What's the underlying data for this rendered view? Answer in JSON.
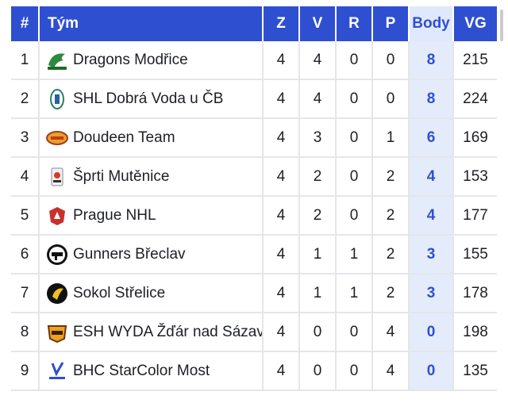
{
  "header": {
    "rank": "#",
    "team": "Tým",
    "z": "Z",
    "v": "V",
    "r": "R",
    "p": "P",
    "body": "Body",
    "vg": "VG"
  },
  "rows": [
    {
      "rank": "1",
      "team": "Dragons Modřice",
      "z": "4",
      "v": "4",
      "r": "0",
      "p": "0",
      "body": "8",
      "vg": "215",
      "logo": "dragon-logo-icon"
    },
    {
      "rank": "2",
      "team": "SHL Dobrá Voda u ČB",
      "z": "4",
      "v": "4",
      "r": "0",
      "p": "0",
      "body": "8",
      "vg": "224",
      "logo": "shl-logo-icon"
    },
    {
      "rank": "3",
      "team": "Doudeen Team",
      "z": "4",
      "v": "3",
      "r": "0",
      "p": "1",
      "body": "6",
      "vg": "169",
      "logo": "doudeen-logo-icon"
    },
    {
      "rank": "4",
      "team": "Šprti Mutěnice",
      "z": "4",
      "v": "2",
      "r": "0",
      "p": "2",
      "body": "4",
      "vg": "153",
      "logo": "sprti-logo-icon"
    },
    {
      "rank": "5",
      "team": "Prague NHL",
      "z": "4",
      "v": "2",
      "r": "0",
      "p": "2",
      "body": "4",
      "vg": "177",
      "logo": "prague-logo-icon"
    },
    {
      "rank": "6",
      "team": "Gunners Břeclav",
      "z": "4",
      "v": "1",
      "r": "1",
      "p": "2",
      "body": "3",
      "vg": "155",
      "logo": "gunners-logo-icon"
    },
    {
      "rank": "7",
      "team": "Sokol Střelice",
      "z": "4",
      "v": "1",
      "r": "1",
      "p": "2",
      "body": "3",
      "vg": "178",
      "logo": "sokol-logo-icon"
    },
    {
      "rank": "8",
      "team": "ESH WYDA Žďár nad Sázavou",
      "z": "4",
      "v": "0",
      "r": "0",
      "p": "4",
      "body": "0",
      "vg": "198",
      "logo": "esh-logo-icon"
    },
    {
      "rank": "9",
      "team": "BHC StarColor Most",
      "z": "4",
      "v": "0",
      "r": "0",
      "p": "4",
      "body": "0",
      "vg": "135",
      "logo": "bhc-logo-icon"
    }
  ],
  "colors": {
    "header_bg": "#2f4fd1",
    "body_highlight": "#e4ecfb"
  }
}
